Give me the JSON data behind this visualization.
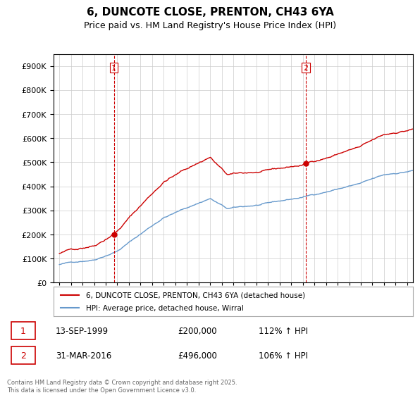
{
  "title": "6, DUNCOTE CLOSE, PRENTON, CH43 6YA",
  "subtitle": "Price paid vs. HM Land Registry's House Price Index (HPI)",
  "red_label": "6, DUNCOTE CLOSE, PRENTON, CH43 6YA (detached house)",
  "blue_label": "HPI: Average price, detached house, Wirral",
  "sale1_date": "13-SEP-1999",
  "sale1_price": 200000,
  "sale1_hpi": "112% ↑ HPI",
  "sale2_date": "31-MAR-2016",
  "sale2_price": 496000,
  "sale2_hpi": "106% ↑ HPI",
  "vline1_x": 1999.71,
  "vline2_x": 2016.25,
  "ylim_min": 0,
  "ylim_max": 950000,
  "xlim_min": 1994.5,
  "xlim_max": 2025.5,
  "background_color": "#ffffff",
  "grid_color": "#cccccc",
  "red_color": "#cc0000",
  "blue_color": "#6699cc",
  "vline_color": "#cc0000",
  "footer": "Contains HM Land Registry data © Crown copyright and database right 2025.\nThis data is licensed under the Open Government Licence v3.0."
}
